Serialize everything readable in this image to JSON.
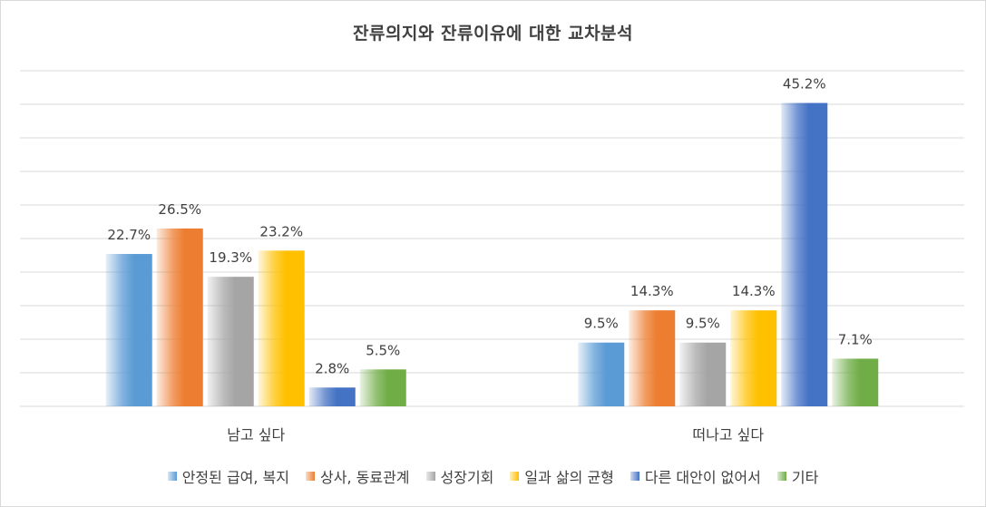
{
  "chart_data": {
    "type": "bar",
    "title": "잔류의지와 잔류이유에 대한 교차분석",
    "categories": [
      "남고 싶다",
      "떠나고 싶다"
    ],
    "series": [
      {
        "name": "안정된 급여, 복지",
        "values": [
          22.7,
          9.5
        ],
        "labels": [
          "22.7%",
          "9.5%"
        ],
        "color": "#5b9bd5"
      },
      {
        "name": "상사, 동료관계",
        "values": [
          26.5,
          14.3
        ],
        "labels": [
          "26.5%",
          "14.3%"
        ],
        "color": "#ed7d31"
      },
      {
        "name": "성장기회",
        "values": [
          19.3,
          9.5
        ],
        "labels": [
          "19.3%",
          "9.5%"
        ],
        "color": "#a5a5a5"
      },
      {
        "name": "일과 삶의 균형",
        "values": [
          23.2,
          14.3
        ],
        "labels": [
          "23.2%",
          "14.3%"
        ],
        "color": "#ffc000"
      },
      {
        "name": "다른 대안이 없어서",
        "values": [
          2.8,
          45.2
        ],
        "labels": [
          "2.8%",
          "45.2%"
        ],
        "color": "#4472c4"
      },
      {
        "name": "기타",
        "values": [
          5.5,
          7.1
        ],
        "labels": [
          "5.5%",
          "7.1%"
        ],
        "color": "#70ad47"
      }
    ],
    "ylim": [
      0,
      50
    ],
    "grid": true,
    "legend": "bottom"
  }
}
